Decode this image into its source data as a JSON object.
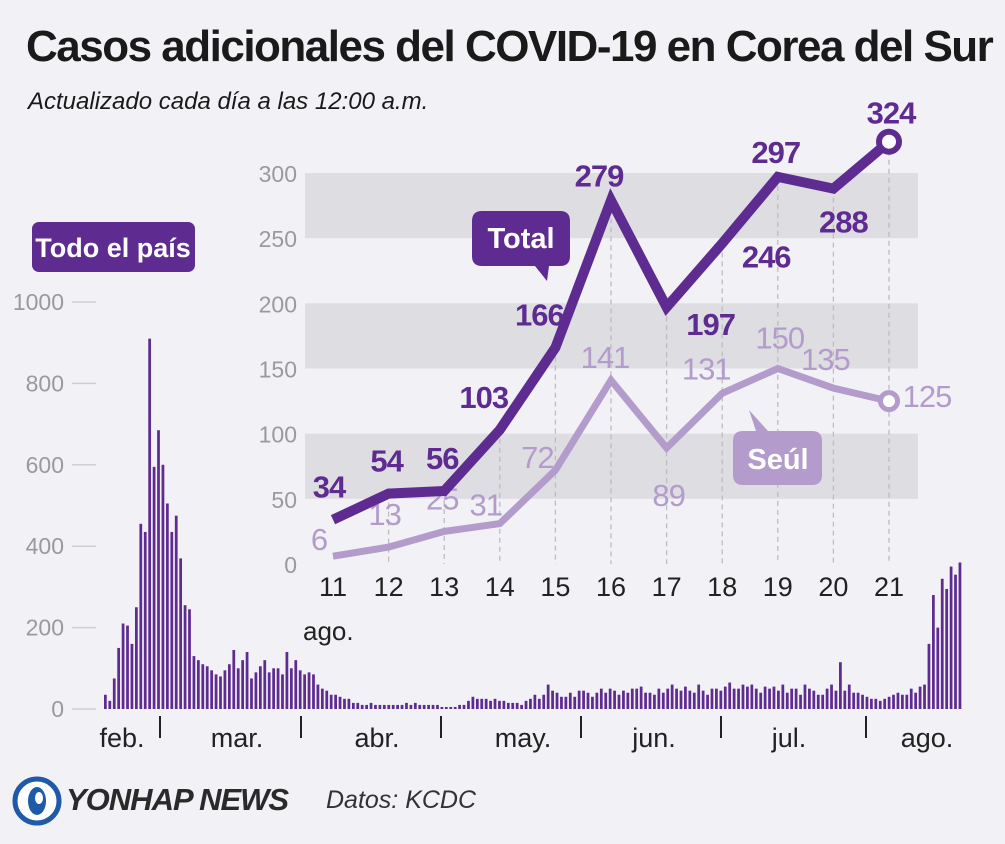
{
  "header": {
    "title": "Casos adicionales del COVID-19 en Corea del Sur",
    "subtitle": "Actualizado cada día a las 12:00 a.m."
  },
  "footer": {
    "brand": "YONHAP NEWS",
    "source": "Datos: KCDC"
  },
  "colors": {
    "total": "#5e2b91",
    "seoul": "#b39bcc",
    "national_bars": "#5e2b91",
    "band": "#dedde2",
    "axis_text": "#9a9a9a"
  },
  "chart_data": [
    {
      "type": "line",
      "x": [
        "11",
        "12",
        "13",
        "14",
        "15",
        "16",
        "17",
        "18",
        "19",
        "20",
        "21"
      ],
      "x_suffix_label": "ago.",
      "series": [
        {
          "name": "Total",
          "values": [
            34,
            54,
            56,
            103,
            166,
            279,
            197,
            246,
            297,
            288,
            324
          ]
        },
        {
          "name": "Seúl",
          "values": [
            6,
            13,
            25,
            31,
            72,
            141,
            89,
            131,
            150,
            135,
            125
          ]
        }
      ],
      "ylim": [
        0,
        300
      ],
      "yticks": [
        0,
        50,
        100,
        150,
        200,
        250,
        300
      ]
    },
    {
      "type": "bar",
      "label": "Todo el país",
      "yticks": [
        0,
        200,
        400,
        600,
        800,
        1000
      ],
      "ylim": [
        0,
        1000
      ],
      "month_labels": [
        "feb.",
        "mar.",
        "abr.",
        "may.",
        "jun.",
        "jul.",
        "ago."
      ],
      "values": [
        35,
        20,
        75,
        150,
        210,
        205,
        160,
        250,
        455,
        435,
        910,
        595,
        685,
        600,
        505,
        435,
        475,
        370,
        255,
        245,
        130,
        120,
        110,
        105,
        95,
        85,
        80,
        95,
        110,
        145,
        100,
        120,
        140,
        75,
        90,
        105,
        120,
        90,
        100,
        100,
        85,
        140,
        100,
        120,
        95,
        85,
        90,
        85,
        60,
        50,
        45,
        35,
        35,
        30,
        25,
        25,
        15,
        15,
        10,
        10,
        15,
        10,
        10,
        10,
        10,
        10,
        10,
        10,
        15,
        10,
        15,
        10,
        10,
        10,
        10,
        10,
        5,
        5,
        5,
        5,
        10,
        10,
        20,
        30,
        25,
        25,
        25,
        20,
        25,
        20,
        20,
        15,
        15,
        15,
        10,
        20,
        25,
        35,
        25,
        35,
        60,
        45,
        40,
        30,
        30,
        40,
        30,
        45,
        45,
        40,
        30,
        40,
        50,
        40,
        50,
        45,
        35,
        45,
        40,
        50,
        50,
        55,
        40,
        40,
        35,
        50,
        40,
        50,
        60,
        50,
        45,
        55,
        45,
        40,
        60,
        45,
        35,
        50,
        50,
        45,
        55,
        65,
        50,
        50,
        60,
        55,
        60,
        50,
        40,
        55,
        50,
        55,
        45,
        60,
        40,
        50,
        50,
        35,
        60,
        50,
        45,
        35,
        35,
        50,
        60,
        45,
        115,
        45,
        60,
        40,
        40,
        35,
        30,
        25,
        25,
        20,
        25,
        30,
        35,
        40,
        35,
        35,
        50,
        40,
        55,
        60,
        160,
        280,
        200,
        320,
        295,
        350,
        330,
        360
      ]
    }
  ]
}
